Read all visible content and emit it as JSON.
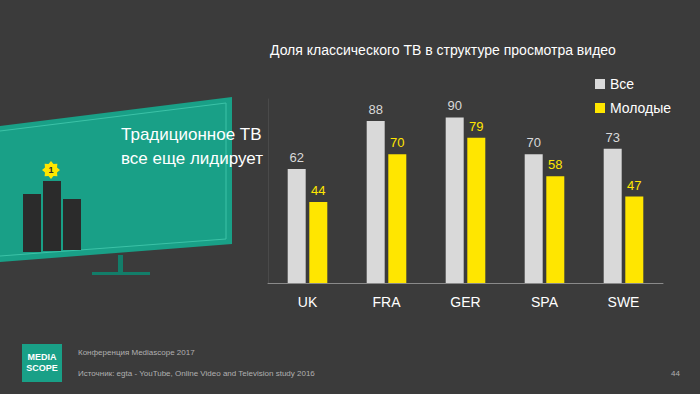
{
  "chart_data": {
    "type": "bar",
    "title": "Доля классического ТВ в структуре просмотра видео",
    "categories": [
      "UK",
      "FRA",
      "GER",
      "SPA",
      "SWE"
    ],
    "series": [
      {
        "name": "Все",
        "color": "#d9d9d9",
        "values": [
          62,
          88,
          90,
          70,
          73
        ]
      },
      {
        "name": "Молодые",
        "color": "#ffe600",
        "values": [
          44,
          70,
          79,
          58,
          47
        ]
      }
    ],
    "ylim": [
      0,
      100
    ],
    "grid": false,
    "legend": "upper right",
    "data_labels": true,
    "tick_labels": "x"
  },
  "slide": {
    "headline": [
      "Традиционное ТВ",
      "все еще лидирует"
    ],
    "badge": 1,
    "logo": [
      "MEDIA",
      "SCOPE"
    ],
    "footer": {
      "conference": "Конференция Mediascope 2017",
      "source": "Источник: egta - YouTube, Online Video and Television study 2016",
      "page": 44
    }
  }
}
